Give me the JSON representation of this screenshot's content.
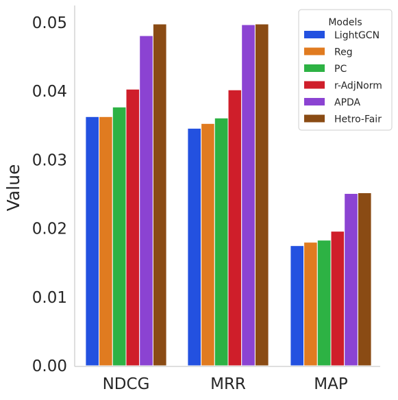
{
  "chart_data": {
    "type": "bar",
    "categories": [
      "NDCG",
      "MRR",
      "MAP"
    ],
    "ylabel": "Value",
    "xlabel": "",
    "ylim": [
      0,
      0.0525
    ],
    "yticks": [
      "0.00",
      "0.01",
      "0.02",
      "0.03",
      "0.04",
      "0.05"
    ],
    "ytick_values": [
      0,
      0.01,
      0.02,
      0.03,
      0.04,
      0.05
    ],
    "grid": false,
    "legend": {
      "title": "Models",
      "placement": "top-right"
    },
    "series": [
      {
        "name": "LightGCN",
        "color": "#2351e0",
        "values": [
          0.0363,
          0.0346,
          0.0175
        ]
      },
      {
        "name": "Reg",
        "color": "#e07b20",
        "values": [
          0.0363,
          0.0353,
          0.018
        ]
      },
      {
        "name": "PC",
        "color": "#2db244",
        "values": [
          0.0377,
          0.0361,
          0.0183
        ]
      },
      {
        "name": "r-AdjNorm",
        "color": "#cf1e2a",
        "values": [
          0.0403,
          0.0402,
          0.0196
        ]
      },
      {
        "name": "APDA",
        "color": "#8b43d2",
        "values": [
          0.0481,
          0.0497,
          0.0251
        ]
      },
      {
        "name": "Hetro-Fair",
        "color": "#8a4b14",
        "values": [
          0.0498,
          0.0498,
          0.0252
        ]
      }
    ]
  }
}
